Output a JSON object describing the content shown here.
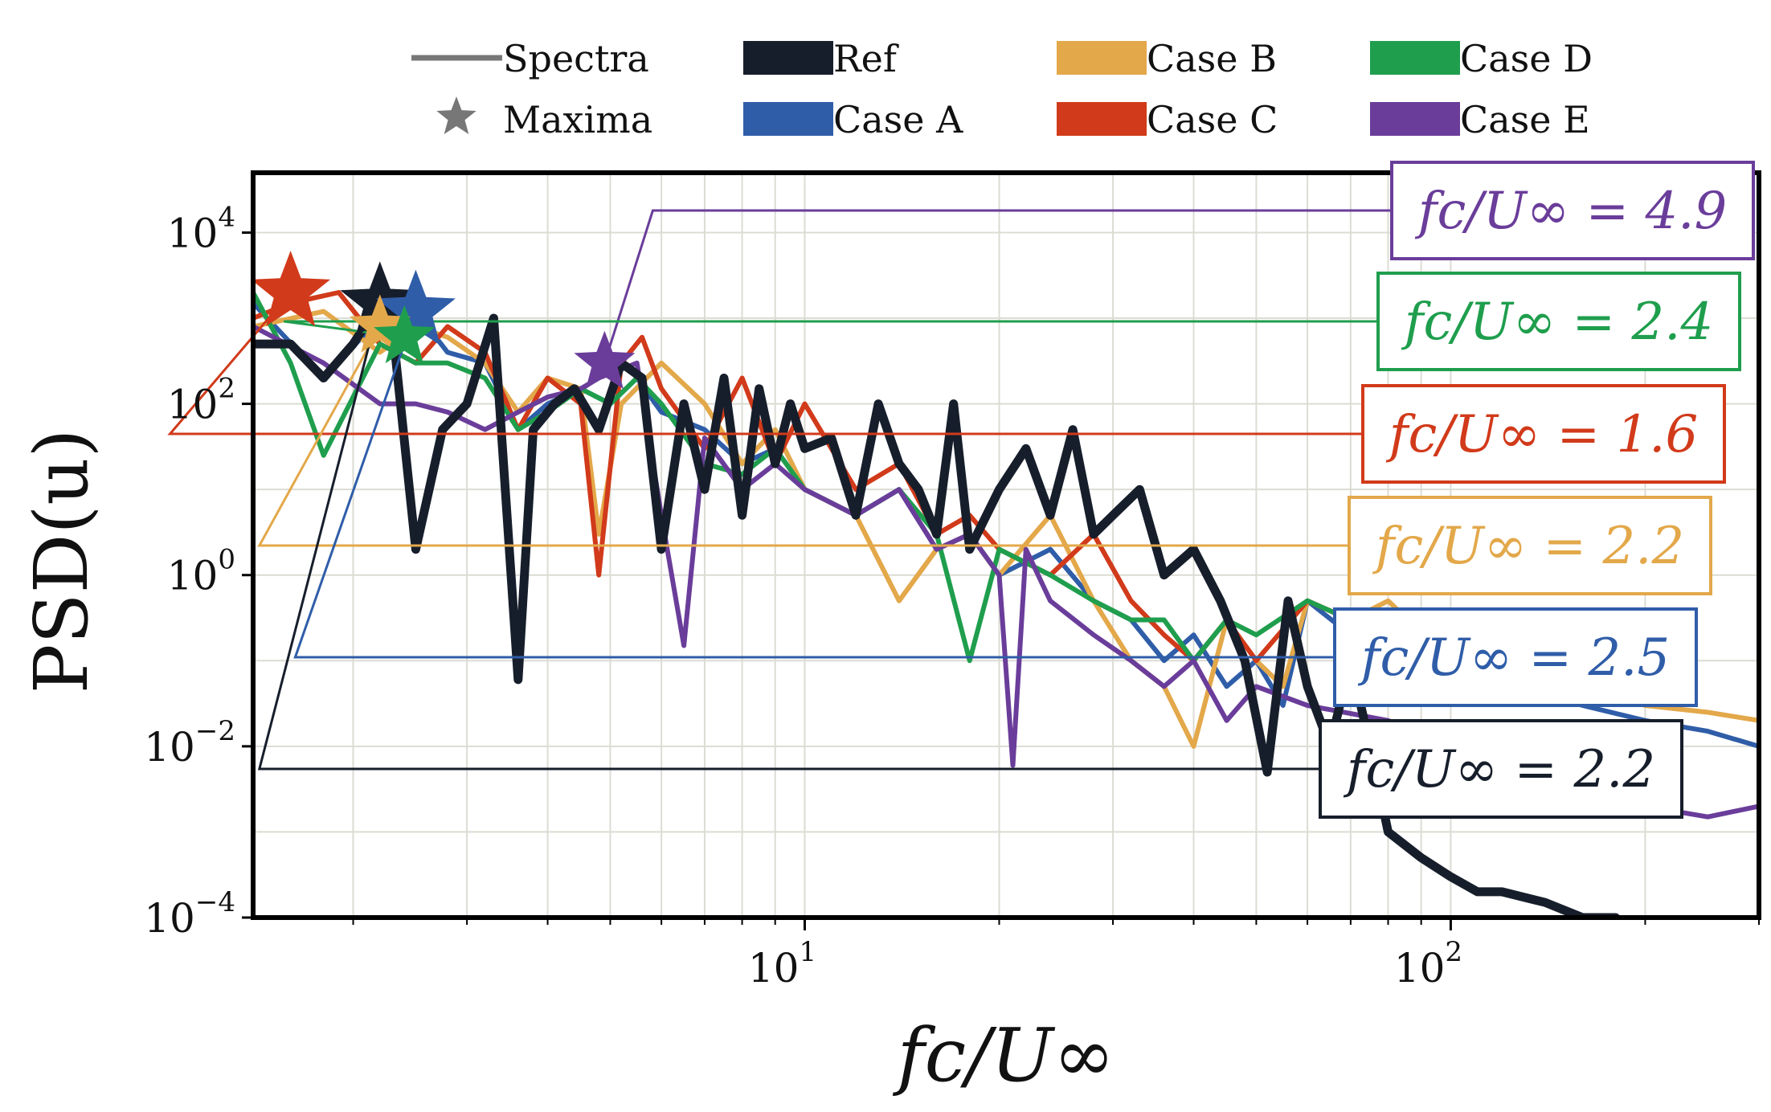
{
  "chart_data": {
    "type": "line",
    "xscale": "log",
    "yscale": "log",
    "xlim": [
      1.4,
      300
    ],
    "ylim": [
      0.0001,
      50000
    ],
    "grid": true,
    "xlabel": "fc/U∞",
    "ylabel": "PSD(u)",
    "xticks": [
      {
        "value": 10,
        "base": "10",
        "exp": "1"
      },
      {
        "value": 100,
        "base": "10",
        "exp": "2"
      }
    ],
    "yticks": [
      {
        "value": 10000,
        "base": "10",
        "exp": "4"
      },
      {
        "value": 100,
        "base": "10",
        "exp": "2"
      },
      {
        "value": 1,
        "base": "10",
        "exp": "0"
      },
      {
        "value": 0.01,
        "base": "10",
        "exp": "−2"
      },
      {
        "value": 0.0001,
        "base": "10",
        "exp": "−4"
      }
    ],
    "legend": {
      "placement": "top-center",
      "style_items": [
        {
          "label": "Spectra",
          "marker": "line"
        },
        {
          "label": "Maxima",
          "marker": "star"
        }
      ],
      "series_items": [
        "Ref",
        "Case A",
        "Case B",
        "Case C",
        "Case D",
        "Case E"
      ]
    },
    "series": [
      {
        "name": "Ref",
        "color": "#171e2b",
        "x": [
          1.4,
          1.6,
          1.8,
          2.0,
          2.2,
          2.3,
          2.5,
          2.75,
          3.0,
          3.3,
          3.6,
          3.8,
          4.1,
          4.4,
          4.8,
          5.2,
          5.6,
          6.0,
          6.5,
          7.0,
          7.5,
          8.0,
          8.5,
          9.0,
          9.5,
          10,
          11,
          12,
          13,
          14,
          15,
          16,
          17,
          18,
          20,
          22,
          24,
          26,
          28,
          30,
          33,
          36,
          40,
          44,
          48,
          52,
          56,
          60,
          65,
          70,
          75,
          80,
          90,
          100,
          110,
          120,
          140,
          160,
          180
        ],
        "y": [
          500,
          500,
          200,
          500,
          1500,
          800,
          2,
          50,
          100,
          1000,
          0.06,
          50,
          100,
          150,
          50,
          300,
          200,
          2,
          100,
          10,
          200,
          5,
          150,
          20,
          100,
          30,
          40,
          5,
          100,
          20,
          10,
          3,
          100,
          2,
          10,
          30,
          5,
          50,
          3,
          5,
          10,
          1,
          2,
          0.5,
          0.1,
          0.005,
          0.5,
          0.05,
          0.01,
          0.1,
          0.01,
          0.001,
          0.0005,
          0.0003,
          0.0002,
          0.0002,
          0.00015,
          0.0001,
          0.0001
        ]
      },
      {
        "name": "Case A",
        "color": "#2f5da8",
        "x": [
          1.4,
          1.8,
          2.2,
          2.5,
          2.8,
          3.2,
          3.6,
          4.0,
          4.5,
          5.0,
          5.5,
          6.0,
          7,
          8,
          9,
          10,
          12,
          14,
          16,
          18,
          20,
          24,
          28,
          32,
          36,
          40,
          45,
          50,
          55,
          60,
          70,
          80,
          100,
          130,
          160,
          200,
          250,
          300
        ],
        "y": [
          1500,
          200,
          1000,
          1200,
          400,
          300,
          50,
          100,
          150,
          100,
          200,
          80,
          50,
          20,
          30,
          10,
          5,
          10,
          2,
          3,
          1,
          2,
          0.5,
          0.3,
          0.1,
          0.2,
          0.05,
          0.1,
          0.03,
          0.5,
          0.2,
          0.3,
          0.05,
          0.05,
          0.03,
          0.02,
          0.015,
          0.01
        ]
      },
      {
        "name": "Case B",
        "color": "#e3a84a",
        "x": [
          1.4,
          1.8,
          2.2,
          2.5,
          2.8,
          3.2,
          3.6,
          4.0,
          4.5,
          4.8,
          5.2,
          6.0,
          7,
          8,
          9,
          10,
          12,
          14,
          16,
          18,
          20,
          24,
          28,
          32,
          36,
          40,
          45,
          50,
          55,
          60,
          70,
          80,
          100,
          130,
          160,
          200,
          250,
          300
        ],
        "y": [
          800,
          1200,
          400,
          800,
          600,
          300,
          80,
          200,
          150,
          3,
          100,
          300,
          100,
          20,
          50,
          10,
          5,
          0.5,
          2,
          3,
          1,
          5,
          0.5,
          0.1,
          0.05,
          0.01,
          0.3,
          0.1,
          0.05,
          0.5,
          0.3,
          0.5,
          0.1,
          0.06,
          0.05,
          0.03,
          0.025,
          0.02
        ]
      },
      {
        "name": "Case C",
        "color": "#d13a1a",
        "x": [
          1.4,
          1.6,
          1.9,
          2.2,
          2.5,
          2.8,
          3.2,
          3.6,
          4.0,
          4.5,
          4.8,
          5.2,
          5.6,
          6.0,
          7,
          8,
          9,
          10,
          12,
          14,
          16,
          18,
          20,
          24,
          28,
          32,
          36,
          40,
          45,
          50,
          60,
          70,
          80,
          100
        ],
        "y": [
          1000,
          1500,
          2000,
          500,
          300,
          800,
          400,
          50,
          200,
          100,
          1,
          300,
          600,
          150,
          30,
          200,
          20,
          100,
          10,
          20,
          3,
          5,
          2,
          1,
          3,
          0.5,
          0.2,
          0.1,
          0.3,
          0.1,
          0.5,
          0.3,
          0.3,
          0.2
        ]
      },
      {
        "name": "Case D",
        "color": "#1f9e4d",
        "x": [
          1.4,
          1.6,
          1.8,
          2.2,
          2.5,
          2.8,
          3.2,
          3.6,
          4.0,
          4.5,
          5.0,
          5.5,
          6.0,
          7,
          8,
          9,
          10,
          12,
          14,
          16,
          18,
          20,
          24,
          28,
          32,
          36,
          40,
          45,
          50,
          60,
          70,
          80
        ],
        "y": [
          2000,
          300,
          25,
          500,
          300,
          300,
          200,
          50,
          80,
          150,
          100,
          200,
          100,
          20,
          15,
          30,
          10,
          5,
          10,
          3,
          0.1,
          2,
          1,
          0.5,
          0.3,
          0.3,
          0.1,
          0.3,
          0.2,
          0.5,
          0.3,
          0.3
        ]
      },
      {
        "name": "Case E",
        "color": "#6a3d9a",
        "x": [
          1.4,
          1.8,
          2.2,
          2.5,
          2.8,
          3.2,
          3.6,
          4.0,
          4.5,
          4.8,
          5.5,
          6.0,
          6.5,
          7,
          8,
          9,
          10,
          12,
          14,
          16,
          18,
          20,
          21,
          22,
          24,
          28,
          32,
          36,
          40,
          45,
          50,
          60,
          80,
          100,
          130,
          160,
          200,
          250,
          300
        ],
        "y": [
          800,
          300,
          100,
          100,
          80,
          50,
          80,
          120,
          150,
          200,
          300,
          5,
          0.15,
          40,
          10,
          20,
          10,
          5,
          10,
          2,
          3,
          1,
          0.006,
          2,
          0.5,
          0.2,
          0.1,
          0.05,
          0.1,
          0.02,
          0.05,
          0.03,
          0.02,
          0.01,
          0.005,
          0.003,
          0.002,
          0.0015,
          0.002
        ]
      }
    ],
    "maxima": [
      {
        "series": "Case C",
        "x": 1.6,
        "y": 2000,
        "label_value": "fc/U∞ = 1.6"
      },
      {
        "series": "Ref",
        "x": 2.2,
        "y": 1500,
        "label_value": "fc/U∞ = 2.2"
      },
      {
        "series": "Case A",
        "x": 2.5,
        "y": 1200,
        "label_value": "fc/U∞ = 2.5"
      },
      {
        "series": "Case B",
        "x": 2.2,
        "y": 800,
        "label_value": "fc/U∞ = 2.2"
      },
      {
        "series": "Case D",
        "x": 2.4,
        "y": 600,
        "label_value": "fc/U∞ = 2.4"
      },
      {
        "series": "Case E",
        "x": 4.9,
        "y": 300,
        "label_value": "fc/U∞ = 4.9"
      }
    ],
    "annotations": [
      {
        "series": "Case E",
        "text": "fc/U∞ = 4.9"
      },
      {
        "series": "Case D",
        "text": "fc/U∞ = 2.4"
      },
      {
        "series": "Case C",
        "text": "fc/U∞ = 1.6"
      },
      {
        "series": "Case B",
        "text": "fc/U∞ = 2.2"
      },
      {
        "series": "Case A",
        "text": "fc/U∞ = 2.5"
      },
      {
        "series": "Ref",
        "text": "fc/U∞ = 2.2"
      }
    ]
  }
}
